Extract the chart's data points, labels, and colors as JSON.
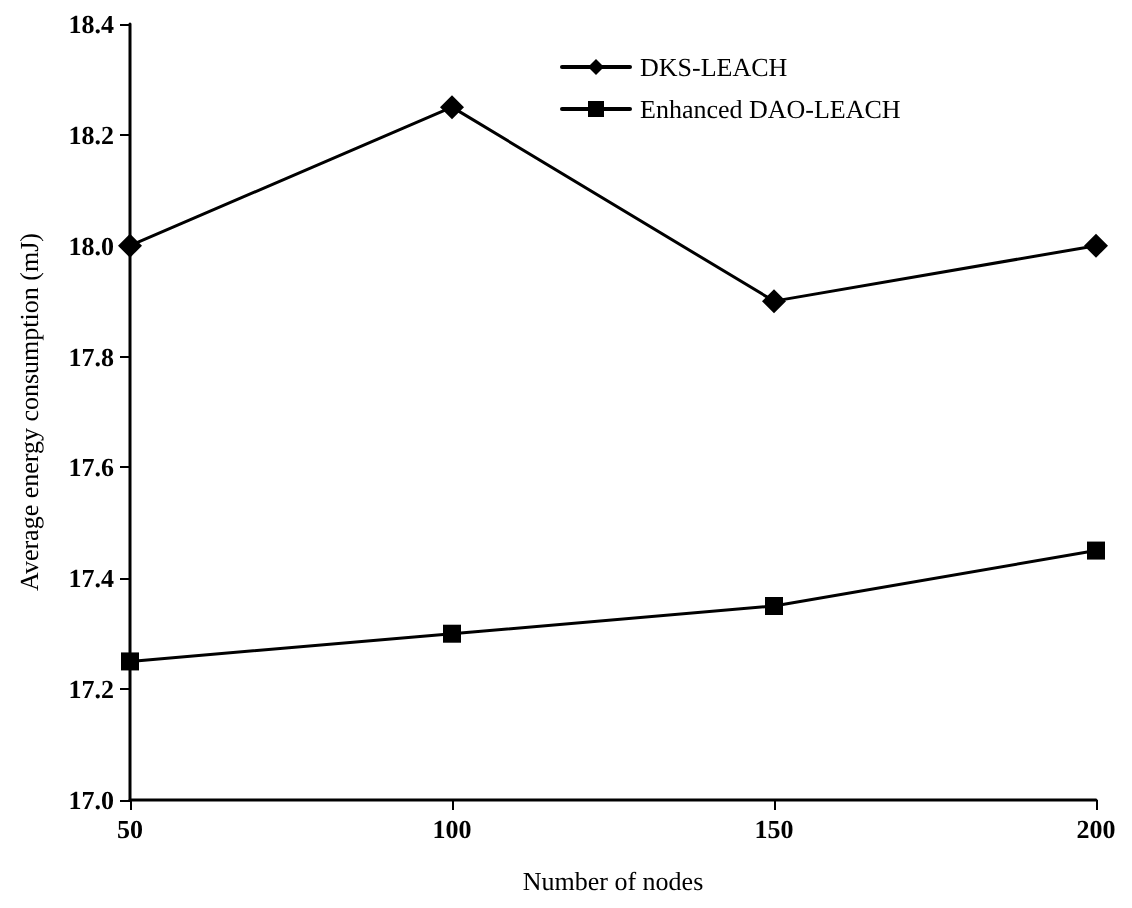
{
  "chart_data": {
    "type": "line",
    "xlabel": "Number of nodes",
    "ylabel": "Average energy consumption (mJ)",
    "x": [
      50,
      100,
      150,
      200
    ],
    "series": [
      {
        "name": "DKS-LEACH",
        "color": "#000000",
        "marker": "diamond",
        "values": [
          18.0,
          18.25,
          17.9,
          18.0
        ]
      },
      {
        "name": "Enhanced DAO-LEACH",
        "color": "#000000",
        "marker": "square",
        "values": [
          17.25,
          17.3,
          17.35,
          17.45
        ]
      }
    ],
    "xlim": [
      50,
      200
    ],
    "xticks": [
      50,
      100,
      150,
      200
    ],
    "ylim": [
      17.0,
      18.4
    ],
    "yticks": [
      {
        "value": 17.0,
        "label": "17.0"
      },
      {
        "value": 17.2,
        "label": "17.2"
      },
      {
        "value": 17.4,
        "label": "17.4"
      },
      {
        "value": 17.6,
        "label": "17.6"
      },
      {
        "value": 17.8,
        "label": "17.8"
      },
      {
        "value": 18.0,
        "label": "18.0"
      },
      {
        "value": 18.2,
        "label": "18.2"
      },
      {
        "value": 18.4,
        "label": "18.4"
      }
    ],
    "grid": false,
    "legend": "top right",
    "line_style": "solid"
  }
}
